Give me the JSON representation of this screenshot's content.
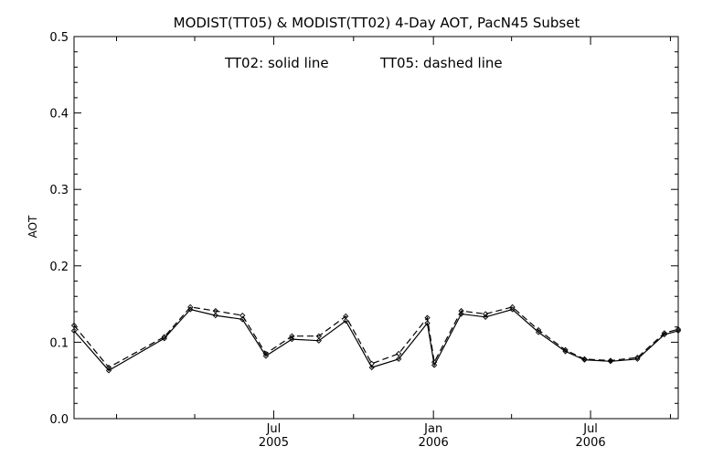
{
  "chart_data": {
    "type": "line",
    "title": "MODIST(TT05) & MODIST(TT02) 4-Day AOT, PacN45 Subset",
    "annotation_solid": "TT02: solid line",
    "annotation_dashed": "TT05: dashed line",
    "ylabel": "AOT",
    "xlabel": "",
    "ylim": [
      0,
      0.5
    ],
    "xlim": [
      "2004-11-13",
      "2006-10-10"
    ],
    "y_ticks": [
      "0.0",
      "0.1",
      "0.2",
      "0.3",
      "0.4",
      "0.5"
    ],
    "x_ticks": [
      {
        "date": "2005-07-01",
        "month": "Jul",
        "year": "2005"
      },
      {
        "date": "2006-01-01",
        "month": "Jan",
        "year": "2006"
      },
      {
        "date": "2006-07-01",
        "month": "Jul",
        "year": "2006"
      }
    ],
    "grid": false,
    "series": [
      {
        "name": "TT02",
        "style": "solid",
        "x": [
          "2004-11-13",
          "2004-12-23",
          "2005-02-25",
          "2005-03-27",
          "2005-04-25",
          "2005-05-26",
          "2005-06-22",
          "2005-07-22",
          "2005-08-22",
          "2005-09-22",
          "2005-10-22",
          "2005-11-22",
          "2005-12-25",
          "2006-01-02",
          "2006-02-02",
          "2006-03-02",
          "2006-04-02",
          "2006-05-02",
          "2006-06-02",
          "2006-06-24",
          "2006-07-24",
          "2006-08-24",
          "2006-09-24",
          "2006-10-10"
        ],
        "values": [
          0.115,
          0.063,
          0.105,
          0.143,
          0.135,
          0.13,
          0.082,
          0.104,
          0.102,
          0.128,
          0.067,
          0.078,
          0.125,
          0.07,
          0.137,
          0.133,
          0.143,
          0.113,
          0.088,
          0.077,
          0.075,
          0.078,
          0.11,
          0.115
        ]
      },
      {
        "name": "TT05",
        "style": "dashed",
        "x": [
          "2004-11-13",
          "2004-12-23",
          "2005-02-25",
          "2005-03-27",
          "2005-04-25",
          "2005-05-26",
          "2005-06-22",
          "2005-07-22",
          "2005-08-22",
          "2005-09-22",
          "2005-10-22",
          "2005-11-22",
          "2005-12-25",
          "2006-01-02",
          "2006-02-02",
          "2006-03-02",
          "2006-04-02",
          "2006-05-02",
          "2006-06-02",
          "2006-06-24",
          "2006-07-24",
          "2006-08-24",
          "2006-09-24",
          "2006-10-10"
        ],
        "values": [
          0.122,
          0.067,
          0.107,
          0.146,
          0.141,
          0.135,
          0.085,
          0.108,
          0.108,
          0.134,
          0.072,
          0.085,
          0.132,
          0.074,
          0.141,
          0.137,
          0.146,
          0.116,
          0.09,
          0.078,
          0.076,
          0.08,
          0.112,
          0.117
        ]
      }
    ]
  }
}
